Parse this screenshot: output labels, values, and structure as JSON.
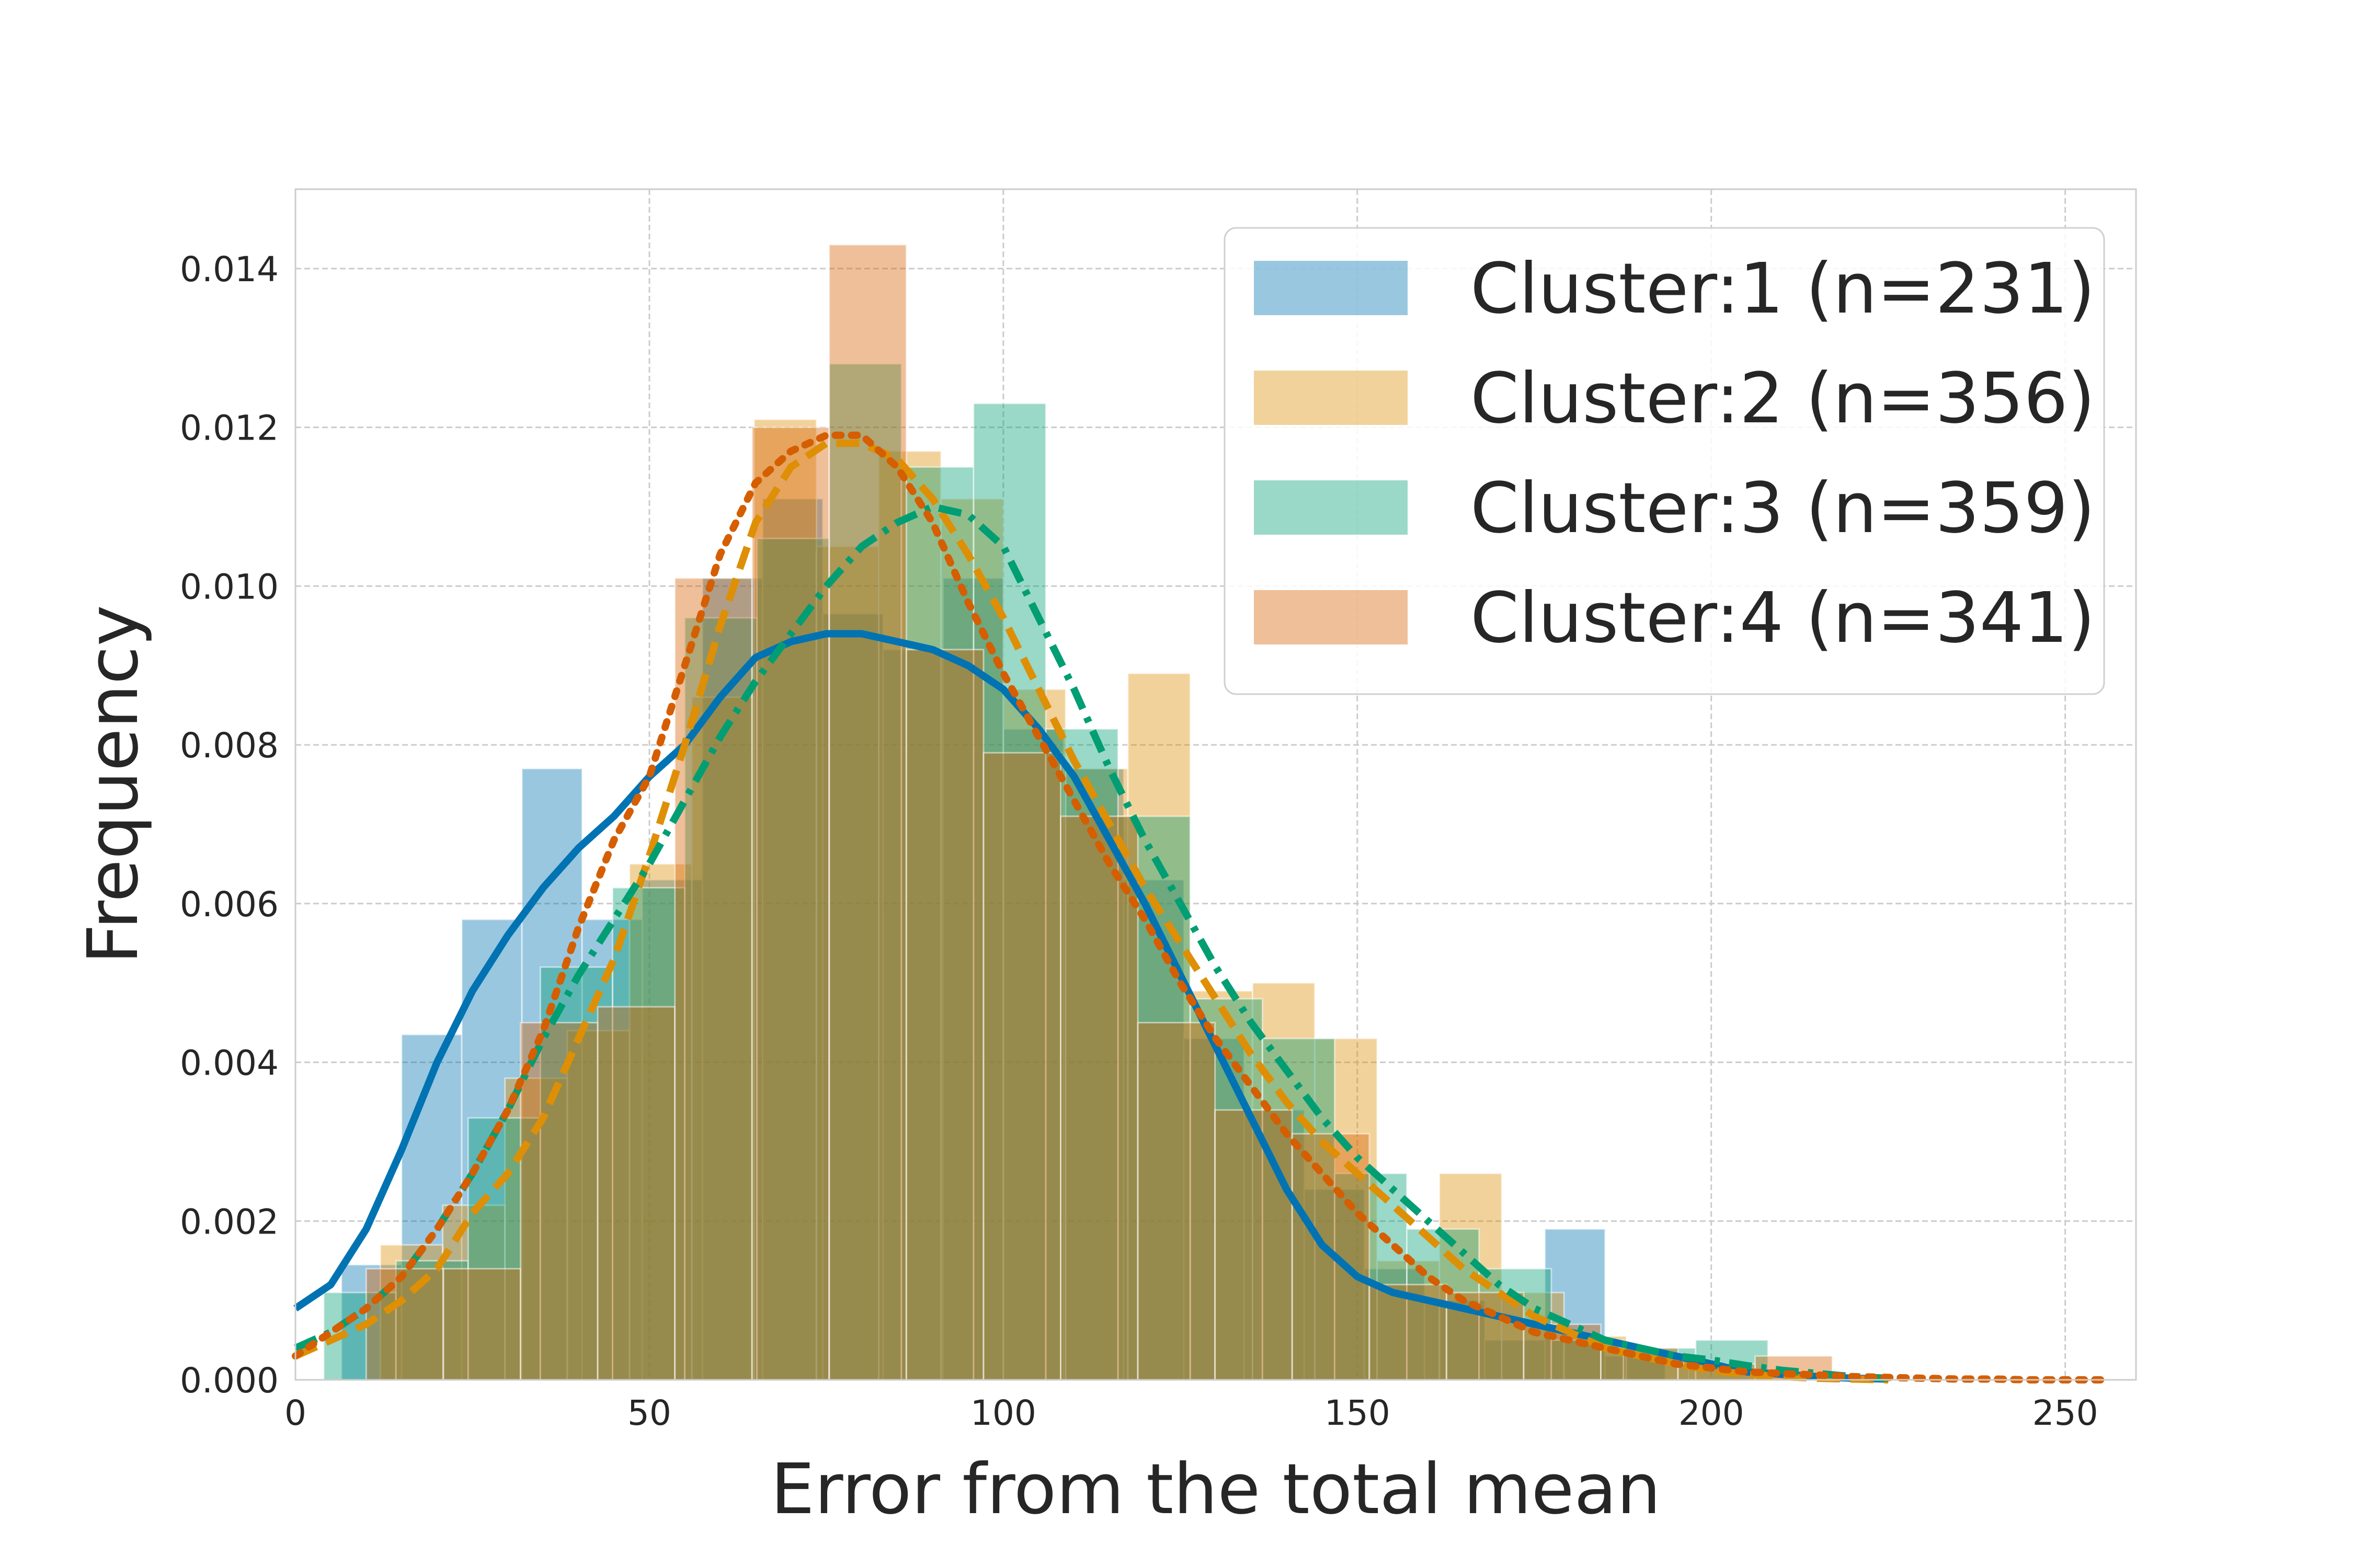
{
  "chart_data": {
    "type": "bar",
    "title": "",
    "xlabel": "Error from the total mean",
    "ylabel": "Frequency",
    "xlim": [
      0,
      260
    ],
    "ylim": [
      0,
      0.015
    ],
    "xticks": [
      0,
      50,
      100,
      150,
      200,
      250
    ],
    "xtick_labels": [
      "0",
      "50",
      "100",
      "150",
      "200",
      "250"
    ],
    "yticks": [
      0.0,
      0.002,
      0.004,
      0.006,
      0.008,
      0.01,
      0.012,
      0.014
    ],
    "ytick_labels": [
      "0.000",
      "0.002",
      "0.004",
      "0.006",
      "0.008",
      "0.010",
      "0.012",
      "0.014"
    ],
    "grid": true,
    "legend_position": "top-right",
    "series": [
      {
        "name": "Cluster:1 (n=231)",
        "color": "#0173b2",
        "kde_style": "solid",
        "bins": [
          {
            "x0": 6.5,
            "x1": 15.0,
            "y": 0.00145
          },
          {
            "x0": 15.0,
            "x1": 23.5,
            "y": 0.00435
          },
          {
            "x0": 23.5,
            "x1": 32.0,
            "y": 0.0058
          },
          {
            "x0": 32.0,
            "x1": 40.5,
            "y": 0.0077
          },
          {
            "x0": 40.5,
            "x1": 49.0,
            "y": 0.0058
          },
          {
            "x0": 49.0,
            "x1": 57.5,
            "y": 0.0063
          },
          {
            "x0": 57.5,
            "x1": 66.0,
            "y": 0.0101
          },
          {
            "x0": 66.0,
            "x1": 74.5,
            "y": 0.0111
          },
          {
            "x0": 74.5,
            "x1": 83.0,
            "y": 0.00965
          },
          {
            "x0": 83.0,
            "x1": 91.5,
            "y": 0.0092
          },
          {
            "x0": 91.5,
            "x1": 100.0,
            "y": 0.0101
          },
          {
            "x0": 100.0,
            "x1": 108.5,
            "y": 0.0082
          },
          {
            "x0": 108.5,
            "x1": 117.0,
            "y": 0.0077
          },
          {
            "x0": 117.0,
            "x1": 125.5,
            "y": 0.0063
          },
          {
            "x0": 125.5,
            "x1": 134.0,
            "y": 0.0043
          },
          {
            "x0": 134.0,
            "x1": 142.5,
            "y": 0.0034
          },
          {
            "x0": 142.5,
            "x1": 151.0,
            "y": 0.0024
          },
          {
            "x0": 151.0,
            "x1": 159.5,
            "y": 0.0014
          },
          {
            "x0": 159.5,
            "x1": 168.0,
            "y": 0.001
          },
          {
            "x0": 168.0,
            "x1": 176.5,
            "y": 0.0005
          },
          {
            "x0": 176.5,
            "x1": 185.0,
            "y": 0.0019
          },
          {
            "x0": 185.0,
            "x1": 193.5,
            "y": 0.0003
          }
        ],
        "kde": {
          "x": [
            0,
            5,
            10,
            15,
            20,
            25,
            30,
            35,
            40,
            45,
            50,
            55,
            60,
            65,
            70,
            75,
            80,
            85,
            90,
            95,
            100,
            105,
            110,
            115,
            120,
            125,
            130,
            135,
            140,
            145,
            150,
            155,
            160,
            165,
            170,
            175,
            180,
            185,
            190,
            195,
            200,
            205,
            210,
            215,
            220,
            225
          ],
          "y": [
            0.0009,
            0.0012,
            0.0019,
            0.0029,
            0.004,
            0.0049,
            0.0056,
            0.0062,
            0.0067,
            0.0071,
            0.0076,
            0.008,
            0.0086,
            0.0091,
            0.0093,
            0.0094,
            0.0094,
            0.0093,
            0.0092,
            0.009,
            0.0087,
            0.0082,
            0.0076,
            0.0068,
            0.006,
            0.0051,
            0.0042,
            0.0033,
            0.0024,
            0.0017,
            0.0013,
            0.0011,
            0.001,
            0.0009,
            0.0008,
            0.0007,
            0.0006,
            0.0005,
            0.0004,
            0.0003,
            0.0002,
            0.0001,
            7e-05,
            4e-05,
            2e-05,
            1e-05
          ]
        }
      },
      {
        "name": "Cluster:2 (n=356)",
        "color": "#de8f05",
        "kde_style": "dashed",
        "bins": [
          {
            "x0": 12.0,
            "x1": 20.8,
            "y": 0.0017
          },
          {
            "x0": 20.8,
            "x1": 29.6,
            "y": 0.0022
          },
          {
            "x0": 29.6,
            "x1": 38.4,
            "y": 0.0038
          },
          {
            "x0": 38.4,
            "x1": 47.2,
            "y": 0.0044
          },
          {
            "x0": 47.2,
            "x1": 56.0,
            "y": 0.0065
          },
          {
            "x0": 56.0,
            "x1": 64.8,
            "y": 0.0086
          },
          {
            "x0": 64.8,
            "x1": 73.6,
            "y": 0.0121
          },
          {
            "x0": 73.6,
            "x1": 82.4,
            "y": 0.0105
          },
          {
            "x0": 82.4,
            "x1": 91.2,
            "y": 0.0117
          },
          {
            "x0": 91.2,
            "x1": 100.0,
            "y": 0.0111
          },
          {
            "x0": 100.0,
            "x1": 108.8,
            "y": 0.0087
          },
          {
            "x0": 108.8,
            "x1": 117.6,
            "y": 0.0077
          },
          {
            "x0": 117.6,
            "x1": 126.4,
            "y": 0.0089
          },
          {
            "x0": 126.4,
            "x1": 135.2,
            "y": 0.0049
          },
          {
            "x0": 135.2,
            "x1": 144.0,
            "y": 0.005
          },
          {
            "x0": 144.0,
            "x1": 152.8,
            "y": 0.0043
          },
          {
            "x0": 152.8,
            "x1": 161.6,
            "y": 0.0015
          },
          {
            "x0": 161.6,
            "x1": 170.4,
            "y": 0.0026
          },
          {
            "x0": 170.4,
            "x1": 179.2,
            "y": 0.0011
          },
          {
            "x0": 179.2,
            "x1": 188.0,
            "y": 0.00055
          },
          {
            "x0": 188.0,
            "x1": 196.8,
            "y": 0.00032
          },
          {
            "x0": 196.8,
            "x1": 205.6,
            "y": 0.0002
          },
          {
            "x0": 205.6,
            "x1": 214.4,
            "y": 0.0001
          }
        ],
        "kde": {
          "x": [
            0,
            5,
            10,
            15,
            20,
            25,
            30,
            35,
            40,
            45,
            50,
            55,
            60,
            65,
            70,
            75,
            80,
            85,
            90,
            95,
            100,
            105,
            110,
            115,
            120,
            125,
            130,
            135,
            140,
            145,
            150,
            155,
            160,
            165,
            170,
            175,
            180,
            185,
            190,
            195,
            200,
            205,
            210,
            215,
            220,
            225
          ],
          "y": [
            0.0003,
            0.0005,
            0.0007,
            0.001,
            0.0014,
            0.0021,
            0.0026,
            0.0033,
            0.0043,
            0.0053,
            0.0066,
            0.008,
            0.0095,
            0.0108,
            0.0115,
            0.0118,
            0.0118,
            0.0116,
            0.0111,
            0.0104,
            0.0096,
            0.0087,
            0.0078,
            0.007,
            0.0062,
            0.0055,
            0.0048,
            0.0041,
            0.0035,
            0.003,
            0.0026,
            0.0022,
            0.0018,
            0.0014,
            0.0011,
            0.0008,
            0.0006,
            0.0004,
            0.0003,
            0.0002,
            0.00012,
            7e-05,
            4e-05,
            2e-05,
            1e-05,
            0.0
          ]
        }
      },
      {
        "name": "Cluster:3 (n=359)",
        "color": "#029e73",
        "kde_style": "dashdot",
        "bins": [
          {
            "x0": 4.0,
            "x1": 14.2,
            "y": 0.0011
          },
          {
            "x0": 14.2,
            "x1": 24.4,
            "y": 0.0015
          },
          {
            "x0": 24.4,
            "x1": 34.6,
            "y": 0.0033
          },
          {
            "x0": 34.6,
            "x1": 44.8,
            "y": 0.0052
          },
          {
            "x0": 44.8,
            "x1": 55.0,
            "y": 0.0062
          },
          {
            "x0": 55.0,
            "x1": 65.2,
            "y": 0.0096
          },
          {
            "x0": 65.2,
            "x1": 75.4,
            "y": 0.0106
          },
          {
            "x0": 75.4,
            "x1": 85.6,
            "y": 0.0128
          },
          {
            "x0": 85.6,
            "x1": 95.8,
            "y": 0.0115
          },
          {
            "x0": 95.8,
            "x1": 106.0,
            "y": 0.0123
          },
          {
            "x0": 106.0,
            "x1": 116.2,
            "y": 0.0082
          },
          {
            "x0": 116.2,
            "x1": 126.4,
            "y": 0.0071
          },
          {
            "x0": 126.4,
            "x1": 136.6,
            "y": 0.0048
          },
          {
            "x0": 136.6,
            "x1": 146.8,
            "y": 0.0043
          },
          {
            "x0": 146.8,
            "x1": 157.0,
            "y": 0.0026
          },
          {
            "x0": 157.0,
            "x1": 167.2,
            "y": 0.0019
          },
          {
            "x0": 167.2,
            "x1": 177.4,
            "y": 0.0014
          },
          {
            "x0": 177.4,
            "x1": 187.6,
            "y": 0.0005
          },
          {
            "x0": 187.6,
            "x1": 197.8,
            "y": 0.0004
          },
          {
            "x0": 197.8,
            "x1": 208.0,
            "y": 0.0005
          }
        ],
        "kde": {
          "x": [
            0,
            5,
            10,
            15,
            20,
            25,
            30,
            35,
            40,
            45,
            50,
            55,
            60,
            65,
            70,
            75,
            80,
            85,
            90,
            95,
            100,
            105,
            110,
            115,
            120,
            125,
            130,
            135,
            140,
            145,
            150,
            155,
            160,
            165,
            170,
            175,
            180,
            185,
            190,
            195,
            200,
            205,
            210,
            215,
            220,
            225
          ],
          "y": [
            0.0004,
            0.0006,
            0.0009,
            0.0013,
            0.0019,
            0.0026,
            0.0034,
            0.0043,
            0.0051,
            0.0058,
            0.0065,
            0.0073,
            0.0081,
            0.0088,
            0.0094,
            0.01,
            0.0105,
            0.0108,
            0.011,
            0.0109,
            0.0105,
            0.0096,
            0.0087,
            0.0077,
            0.0068,
            0.006,
            0.0052,
            0.0045,
            0.0039,
            0.0033,
            0.0028,
            0.0024,
            0.002,
            0.0016,
            0.0012,
            0.0009,
            0.0007,
            0.0005,
            0.0004,
            0.0003,
            0.00025,
            0.00018,
            0.00012,
            8e-05,
            4e-05,
            2e-05
          ]
        }
      },
      {
        "name": "Cluster:4 (n=341)",
        "color": "#d55e00",
        "kde_style": "dotted",
        "bins": [
          {
            "x0": 10.0,
            "x1": 20.9,
            "y": 0.0014
          },
          {
            "x0": 20.9,
            "x1": 31.8,
            "y": 0.0014
          },
          {
            "x0": 31.8,
            "x1": 42.7,
            "y": 0.0045
          },
          {
            "x0": 42.7,
            "x1": 53.6,
            "y": 0.0047
          },
          {
            "x0": 53.6,
            "x1": 64.5,
            "y": 0.0101
          },
          {
            "x0": 64.5,
            "x1": 75.4,
            "y": 0.012
          },
          {
            "x0": 75.4,
            "x1": 86.3,
            "y": 0.0143
          },
          {
            "x0": 86.3,
            "x1": 97.2,
            "y": 0.0092
          },
          {
            "x0": 97.2,
            "x1": 108.1,
            "y": 0.0079
          },
          {
            "x0": 108.1,
            "x1": 119.0,
            "y": 0.0071
          },
          {
            "x0": 119.0,
            "x1": 129.9,
            "y": 0.0045
          },
          {
            "x0": 129.9,
            "x1": 140.8,
            "y": 0.0034
          },
          {
            "x0": 140.8,
            "x1": 151.7,
            "y": 0.0031
          },
          {
            "x0": 151.7,
            "x1": 162.6,
            "y": 0.0012
          },
          {
            "x0": 162.6,
            "x1": 173.5,
            "y": 0.0011
          },
          {
            "x0": 173.5,
            "x1": 184.4,
            "y": 0.0007
          },
          {
            "x0": 184.4,
            "x1": 195.3,
            "y": 0.0004
          },
          {
            "x0": 195.3,
            "x1": 206.2,
            "y": 0.0002
          },
          {
            "x0": 206.2,
            "x1": 217.1,
            "y": 0.0003
          }
        ],
        "kde": {
          "x": [
            0,
            5,
            10,
            15,
            20,
            25,
            30,
            35,
            40,
            45,
            50,
            55,
            60,
            65,
            70,
            75,
            80,
            85,
            90,
            95,
            100,
            105,
            110,
            115,
            120,
            125,
            130,
            135,
            140,
            145,
            150,
            155,
            160,
            165,
            170,
            175,
            180,
            185,
            190,
            195,
            200,
            205,
            210,
            215,
            220,
            225,
            230,
            235,
            240,
            245,
            250,
            255
          ],
          "y": [
            0.0003,
            0.0006,
            0.0009,
            0.0013,
            0.0019,
            0.0026,
            0.0034,
            0.0044,
            0.0057,
            0.0068,
            0.0076,
            0.009,
            0.0104,
            0.0113,
            0.0117,
            0.0119,
            0.0119,
            0.0115,
            0.0108,
            0.0098,
            0.0089,
            0.0081,
            0.0073,
            0.0065,
            0.0058,
            0.005,
            0.0043,
            0.0037,
            0.0031,
            0.0026,
            0.0021,
            0.0017,
            0.0013,
            0.001,
            0.0008,
            0.0006,
            0.0005,
            0.0004,
            0.0003,
            0.0002,
            0.00015,
            0.0001,
            8e-05,
            6e-05,
            4e-05,
            3e-05,
            2e-05,
            1e-05,
            1e-05,
            0.0,
            0.0,
            0.0
          ]
        }
      }
    ]
  }
}
